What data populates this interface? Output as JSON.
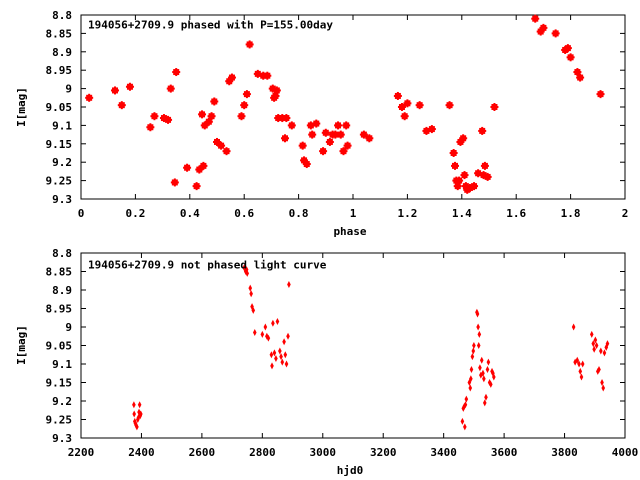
{
  "chart_data": [
    {
      "type": "scatter",
      "title": "194056+2709.9 phased with P=155.00day",
      "xlabel": "phase",
      "ylabel": "I[mag]",
      "xlim": [
        0,
        2
      ],
      "ylim": [
        9.3,
        8.8
      ],
      "y_inverted": true,
      "grid": false,
      "marker": "star",
      "point_color": "#ff0000",
      "x_ticks": [
        0,
        0.2,
        0.4,
        0.6,
        0.8,
        1,
        1.2,
        1.4,
        1.6,
        1.8,
        2
      ],
      "x_tick_labels": [
        "0",
        "0.2",
        "0.4",
        "0.6",
        "0.8",
        "1",
        "1.2",
        "1.4",
        "1.6",
        "1.8",
        "2"
      ],
      "y_ticks": [
        8.8,
        8.85,
        8.9,
        8.95,
        9,
        9.05,
        9.1,
        9.15,
        9.2,
        9.25,
        9.3
      ],
      "y_tick_labels": [
        "8.8",
        "8.85",
        "8.9",
        "8.95",
        "9",
        "9.05",
        "9.1",
        "9.15",
        "9.2",
        "9.25",
        "9.3"
      ],
      "points": [
        [
          0.03,
          9.025
        ],
        [
          0.125,
          9.005
        ],
        [
          0.15,
          9.045
        ],
        [
          0.18,
          8.995
        ],
        [
          0.255,
          9.105
        ],
        [
          0.27,
          9.075
        ],
        [
          0.305,
          9.08
        ],
        [
          0.32,
          9.085
        ],
        [
          0.33,
          9.0
        ],
        [
          0.345,
          9.255
        ],
        [
          0.35,
          8.955
        ],
        [
          0.39,
          9.215
        ],
        [
          0.425,
          9.265
        ],
        [
          0.435,
          9.22
        ],
        [
          0.445,
          9.07
        ],
        [
          0.45,
          9.21
        ],
        [
          0.455,
          9.1
        ],
        [
          0.47,
          9.09
        ],
        [
          0.48,
          9.075
        ],
        [
          0.49,
          9.035
        ],
        [
          0.5,
          9.145
        ],
        [
          0.515,
          9.155
        ],
        [
          0.535,
          9.17
        ],
        [
          0.545,
          8.98
        ],
        [
          0.555,
          8.97
        ],
        [
          0.59,
          9.075
        ],
        [
          0.6,
          9.045
        ],
        [
          0.61,
          9.015
        ],
        [
          0.62,
          8.88
        ],
        [
          0.65,
          8.96
        ],
        [
          0.67,
          8.965
        ],
        [
          0.685,
          8.965
        ],
        [
          0.705,
          9.0
        ],
        [
          0.71,
          9.025
        ],
        [
          0.715,
          9.02
        ],
        [
          0.72,
          9.005
        ],
        [
          0.725,
          9.08
        ],
        [
          0.74,
          9.08
        ],
        [
          0.75,
          9.135
        ],
        [
          0.755,
          9.08
        ],
        [
          0.775,
          9.1
        ],
        [
          0.815,
          9.155
        ],
        [
          0.82,
          9.195
        ],
        [
          0.83,
          9.205
        ],
        [
          0.845,
          9.1
        ],
        [
          0.85,
          9.125
        ],
        [
          0.865,
          9.095
        ],
        [
          0.89,
          9.17
        ],
        [
          0.9,
          9.12
        ],
        [
          0.915,
          9.145
        ],
        [
          0.925,
          9.125
        ],
        [
          0.935,
          9.125
        ],
        [
          0.945,
          9.1
        ],
        [
          0.955,
          9.125
        ],
        [
          0.965,
          9.17
        ],
        [
          0.975,
          9.1
        ],
        [
          0.98,
          9.155
        ],
        [
          1.04,
          9.125
        ],
        [
          1.06,
          9.135
        ],
        [
          1.165,
          9.02
        ],
        [
          1.18,
          9.05
        ],
        [
          1.19,
          9.075
        ],
        [
          1.2,
          9.04
        ],
        [
          1.245,
          9.045
        ],
        [
          1.27,
          9.115
        ],
        [
          1.29,
          9.11
        ],
        [
          1.355,
          9.045
        ],
        [
          1.37,
          9.175
        ],
        [
          1.375,
          9.21
        ],
        [
          1.38,
          9.25
        ],
        [
          1.385,
          9.265
        ],
        [
          1.39,
          9.25
        ],
        [
          1.395,
          9.145
        ],
        [
          1.405,
          9.135
        ],
        [
          1.41,
          9.235
        ],
        [
          1.415,
          9.265
        ],
        [
          1.42,
          9.275
        ],
        [
          1.43,
          9.27
        ],
        [
          1.445,
          9.265
        ],
        [
          1.46,
          9.23
        ],
        [
          1.475,
          9.115
        ],
        [
          1.48,
          9.235
        ],
        [
          1.485,
          9.21
        ],
        [
          1.495,
          9.24
        ],
        [
          1.52,
          9.05
        ],
        [
          1.67,
          8.81
        ],
        [
          1.69,
          8.845
        ],
        [
          1.7,
          8.835
        ],
        [
          1.745,
          8.85
        ],
        [
          1.78,
          8.895
        ],
        [
          1.79,
          8.89
        ],
        [
          1.8,
          8.915
        ],
        [
          1.825,
          8.955
        ],
        [
          1.835,
          8.97
        ],
        [
          1.91,
          9.015
        ]
      ]
    },
    {
      "type": "scatter",
      "title": "194056+2709.9 not phased light curve",
      "xlabel": "hjd0",
      "ylabel": "I[mag]",
      "xlim": [
        2200,
        4000
      ],
      "ylim": [
        9.3,
        8.8
      ],
      "y_inverted": true,
      "grid": false,
      "marker": "diamond",
      "point_color": "#ff0000",
      "x_ticks": [
        2200,
        2400,
        2600,
        2800,
        3000,
        3200,
        3400,
        3600,
        3800,
        4000
      ],
      "x_tick_labels": [
        "2200",
        "2400",
        "2600",
        "2800",
        "3000",
        "3200",
        "3400",
        "3600",
        "3800",
        "4000"
      ],
      "y_ticks": [
        8.8,
        8.85,
        8.9,
        8.95,
        9,
        9.05,
        9.1,
        9.15,
        9.2,
        9.25,
        9.3
      ],
      "y_tick_labels": [
        "8.8",
        "8.85",
        "8.9",
        "8.95",
        "9",
        "9.05",
        "9.1",
        "9.15",
        "9.2",
        "9.25",
        "9.3"
      ],
      "points": [
        [
          2375,
          9.21
        ],
        [
          2376,
          9.235
        ],
        [
          2378,
          9.255
        ],
        [
          2380,
          9.26
        ],
        [
          2382,
          9.265
        ],
        [
          2385,
          9.27
        ],
        [
          2388,
          9.25
        ],
        [
          2390,
          9.245
        ],
        [
          2392,
          9.23
        ],
        [
          2394,
          9.21
        ],
        [
          2396,
          9.24
        ],
        [
          2398,
          9.235
        ],
        [
          2740,
          8.84
        ],
        [
          2745,
          8.85
        ],
        [
          2748,
          8.845
        ],
        [
          2750,
          8.855
        ],
        [
          2760,
          8.895
        ],
        [
          2763,
          8.91
        ],
        [
          2766,
          8.945
        ],
        [
          2770,
          8.955
        ],
        [
          2775,
          9.015
        ],
        [
          2800,
          9.02
        ],
        [
          2810,
          9.0
        ],
        [
          2815,
          9.025
        ],
        [
          2820,
          9.03
        ],
        [
          2830,
          9.075
        ],
        [
          2832,
          9.105
        ],
        [
          2835,
          8.99
        ],
        [
          2840,
          9.07
        ],
        [
          2845,
          9.085
        ],
        [
          2850,
          8.985
        ],
        [
          2858,
          9.065
        ],
        [
          2862,
          9.08
        ],
        [
          2866,
          9.095
        ],
        [
          2872,
          9.04
        ],
        [
          2876,
          9.075
        ],
        [
          2880,
          9.1
        ],
        [
          2885,
          9.025
        ],
        [
          2888,
          8.885
        ],
        [
          3462,
          9.255
        ],
        [
          3465,
          9.22
        ],
        [
          3468,
          9.215
        ],
        [
          3470,
          9.27
        ],
        [
          3472,
          9.21
        ],
        [
          3475,
          9.195
        ],
        [
          3485,
          9.15
        ],
        [
          3488,
          9.165
        ],
        [
          3490,
          9.14
        ],
        [
          3492,
          9.115
        ],
        [
          3495,
          9.08
        ],
        [
          3498,
          9.065
        ],
        [
          3500,
          9.05
        ],
        [
          3510,
          8.96
        ],
        [
          3512,
          8.965
        ],
        [
          3514,
          9.0
        ],
        [
          3516,
          9.05
        ],
        [
          3518,
          9.02
        ],
        [
          3520,
          9.11
        ],
        [
          3523,
          9.13
        ],
        [
          3526,
          9.09
        ],
        [
          3530,
          9.125
        ],
        [
          3533,
          9.14
        ],
        [
          3536,
          9.205
        ],
        [
          3540,
          9.19
        ],
        [
          3545,
          9.115
        ],
        [
          3548,
          9.095
        ],
        [
          3552,
          9.15
        ],
        [
          3556,
          9.155
        ],
        [
          3560,
          9.12
        ],
        [
          3563,
          9.125
        ],
        [
          3566,
          9.135
        ],
        [
          3830,
          9.0
        ],
        [
          3835,
          9.095
        ],
        [
          3842,
          9.09
        ],
        [
          3848,
          9.1
        ],
        [
          3852,
          9.12
        ],
        [
          3856,
          9.135
        ],
        [
          3860,
          9.1
        ],
        [
          3890,
          9.02
        ],
        [
          3895,
          9.045
        ],
        [
          3898,
          9.06
        ],
        [
          3902,
          9.035
        ],
        [
          3906,
          9.05
        ],
        [
          3910,
          9.12
        ],
        [
          3914,
          9.115
        ],
        [
          3920,
          9.065
        ],
        [
          3924,
          9.15
        ],
        [
          3928,
          9.165
        ],
        [
          3932,
          9.07
        ],
        [
          3938,
          9.055
        ],
        [
          3942,
          9.045
        ]
      ]
    }
  ]
}
